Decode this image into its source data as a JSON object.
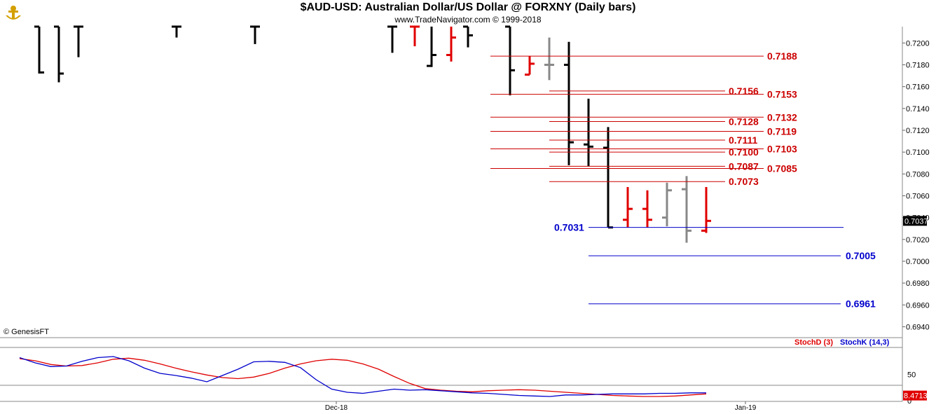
{
  "header": {
    "title": "$AUD-USD:  Australian Dollar/US Dollar @ FORXNY  (Daily bars)",
    "subtitle": "www.TradeNavigator.com © 1999-2018"
  },
  "footer": {
    "copyright": "© GenesisFT"
  },
  "colors": {
    "up": "#e00000",
    "down": "#000000",
    "neutral": "#888888",
    "level_red": "#cc0000",
    "level_blue": "#0000cc",
    "stochD": "#e00000",
    "stochK": "#0000cc",
    "price_badge": "#000000",
    "stoch_badge": "#e00000"
  },
  "chart_data": [
    {
      "type": "ohlc",
      "title": "$AUD-USD:  Australian Dollar/US Dollar @ FORXNY  (Daily bars)",
      "xlabel": "",
      "ylabel": "",
      "x_ticks": [
        "Dec-18",
        "Jan-19"
      ],
      "ylim": [
        0.693,
        0.7215
      ],
      "y_ticks": [
        "0.7200",
        "0.7180",
        "0.7160",
        "0.7140",
        "0.7120",
        "0.7100",
        "0.7080",
        "0.7060",
        "0.7040",
        "0.7020",
        "0.7000",
        "0.6980",
        "0.6960",
        "0.6940"
      ],
      "last_price": "0.7037",
      "bars": [
        {
          "o": 0.7215,
          "h": 0.7215,
          "l": 0.7172,
          "c": 0.7173,
          "color": "down"
        },
        {
          "o": 0.7215,
          "h": 0.7215,
          "l": 0.7164,
          "c": 0.7172,
          "color": "down"
        },
        {
          "o": 0.7215,
          "h": 0.7215,
          "l": 0.7187,
          "c": 0.7215,
          "color": "down"
        },
        {
          "o": 0.7215,
          "h": 0.7215,
          "l": 0.7205,
          "c": 0.7215,
          "color": "down"
        },
        {
          "o": 0.7215,
          "h": 0.7215,
          "l": 0.7199,
          "c": 0.7215,
          "color": "down"
        },
        {
          "o": 0.7215,
          "h": 0.7215,
          "l": 0.7191,
          "c": 0.7215,
          "color": "down"
        },
        {
          "o": 0.7215,
          "h": 0.7215,
          "l": 0.7197,
          "c": 0.7215,
          "color": "up"
        },
        {
          "o": 0.7179,
          "h": 0.7215,
          "l": 0.7178,
          "c": 0.7189,
          "color": "down"
        },
        {
          "o": 0.7189,
          "h": 0.7215,
          "l": 0.7183,
          "c": 0.7205,
          "color": "up"
        },
        {
          "o": 0.7215,
          "h": 0.7215,
          "l": 0.7196,
          "c": 0.7207,
          "color": "down"
        },
        {
          "o": 0.7215,
          "h": 0.7215,
          "l": 0.7152,
          "c": 0.7175,
          "color": "down"
        },
        {
          "o": 0.7171,
          "h": 0.7188,
          "l": 0.7171,
          "c": 0.7181,
          "color": "up"
        },
        {
          "o": 0.718,
          "h": 0.7205,
          "l": 0.7166,
          "c": 0.718,
          "color": "neutral"
        },
        {
          "o": 0.718,
          "h": 0.7201,
          "l": 0.7088,
          "c": 0.7109,
          "color": "down"
        },
        {
          "o": 0.7107,
          "h": 0.7149,
          "l": 0.7087,
          "c": 0.7105,
          "color": "down"
        },
        {
          "o": 0.7104,
          "h": 0.7123,
          "l": 0.7031,
          "c": 0.7031,
          "color": "down"
        },
        {
          "o": 0.7038,
          "h": 0.7068,
          "l": 0.7031,
          "c": 0.7048,
          "color": "up"
        },
        {
          "o": 0.7048,
          "h": 0.7065,
          "l": 0.7031,
          "c": 0.7038,
          "color": "up"
        },
        {
          "o": 0.704,
          "h": 0.7072,
          "l": 0.7032,
          "c": 0.7065,
          "color": "neutral"
        },
        {
          "o": 0.7066,
          "h": 0.7078,
          "l": 0.7017,
          "c": 0.7028,
          "color": "neutral"
        },
        {
          "o": 0.7028,
          "h": 0.7068,
          "l": 0.7026,
          "c": 0.7037,
          "color": "up"
        }
      ],
      "levels": [
        {
          "value": 0.7188,
          "label": "0.7188",
          "color": "red",
          "start_bar": 10,
          "label_slot": "right"
        },
        {
          "value": 0.7156,
          "label": "0.7156",
          "color": "red",
          "start_bar": 13,
          "label_slot": "mid"
        },
        {
          "value": 0.7153,
          "label": "0.7153",
          "color": "red",
          "start_bar": 10,
          "label_slot": "right"
        },
        {
          "value": 0.7132,
          "label": "0.7132",
          "color": "red",
          "start_bar": 10,
          "label_slot": "right"
        },
        {
          "value": 0.7128,
          "label": "0.7128",
          "color": "red",
          "start_bar": 13,
          "label_slot": "mid"
        },
        {
          "value": 0.7119,
          "label": "0.7119",
          "color": "red",
          "start_bar": 10,
          "label_slot": "right"
        },
        {
          "value": 0.7111,
          "label": "0.7111",
          "color": "red",
          "start_bar": 13,
          "label_slot": "mid"
        },
        {
          "value": 0.7103,
          "label": "0.7103",
          "color": "red",
          "start_bar": 10,
          "label_slot": "right"
        },
        {
          "value": 0.71,
          "label": "0.7100",
          "color": "red",
          "start_bar": 13,
          "label_slot": "mid"
        },
        {
          "value": 0.7087,
          "label": "0.7087",
          "color": "red",
          "start_bar": 13,
          "label_slot": "mid"
        },
        {
          "value": 0.7085,
          "label": "0.7085",
          "color": "red",
          "start_bar": 10,
          "label_slot": "right"
        },
        {
          "value": 0.7073,
          "label": "0.7073",
          "color": "red",
          "start_bar": 13,
          "label_slot": "mid"
        },
        {
          "value": 0.7031,
          "label": "0.7031",
          "color": "blue",
          "start_bar": 15,
          "label_slot": "left"
        },
        {
          "value": 0.7005,
          "label": "0.7005",
          "color": "blue",
          "start_bar": 15,
          "label_slot": "far"
        },
        {
          "value": 0.6961,
          "label": "0.6961",
          "color": "blue",
          "start_bar": 15,
          "label_slot": "far"
        }
      ]
    },
    {
      "type": "line",
      "title": "",
      "series": [
        {
          "name": "StochD (3)",
          "color": "stochD",
          "values": [
            80,
            76,
            69,
            66,
            67,
            72,
            79,
            81,
            77,
            70,
            62,
            55,
            49,
            44,
            42,
            45,
            52,
            62,
            70,
            76,
            79,
            77,
            70,
            60,
            46,
            33,
            23,
            20,
            18,
            17,
            19,
            20,
            21,
            20,
            18,
            16,
            14,
            12,
            10,
            9,
            8,
            8,
            9,
            11,
            13
          ]
        },
        {
          "name": "StochK (14,3)",
          "color": "stochK",
          "values": [
            82,
            72,
            65,
            66,
            75,
            82,
            84,
            76,
            62,
            52,
            48,
            43,
            36,
            48,
            60,
            74,
            75,
            73,
            63,
            40,
            22,
            16,
            14,
            18,
            22,
            20,
            21,
            19,
            17,
            15,
            14,
            12,
            10,
            9,
            8,
            11,
            11,
            12,
            13,
            13,
            13,
            14,
            14,
            15,
            15
          ]
        }
      ],
      "ylim": [
        0,
        100
      ],
      "y_ticks": [
        "50",
        "0"
      ],
      "last_value": "8.4713"
    }
  ]
}
